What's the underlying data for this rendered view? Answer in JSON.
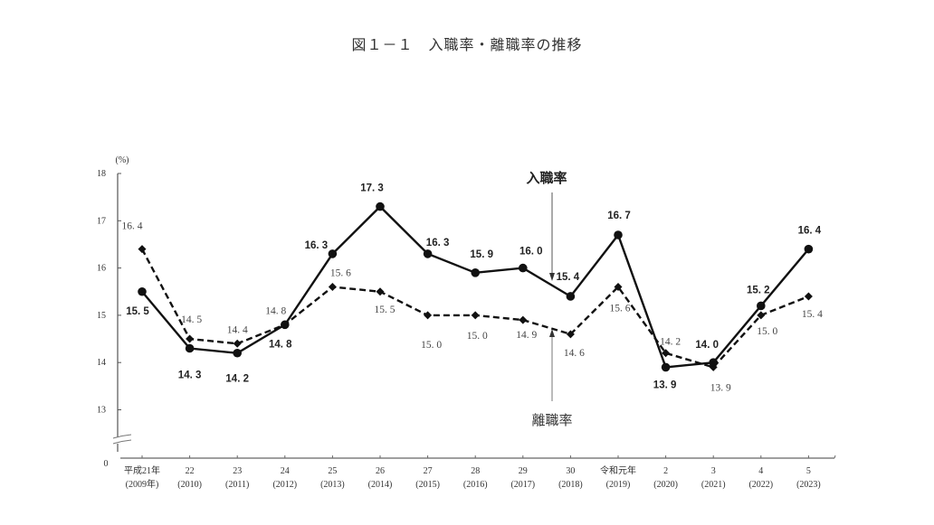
{
  "page": {
    "title": "図１－１　入職率・離職率の推移"
  },
  "chart_data": {
    "type": "line",
    "title": "図１－１　入職率・離職率の推移",
    "xlabel": "",
    "ylabel": "(%)",
    "ylim": [
      13,
      18
    ],
    "yticks": [
      "18",
      "17",
      "16",
      "15",
      "14",
      "13",
      "0"
    ],
    "axis_break": true,
    "grid": false,
    "legend_position": "inline annotations with arrows",
    "categories": [
      {
        "era": "平成21年",
        "year": "(2009年)"
      },
      {
        "era": "22",
        "year": "(2010)"
      },
      {
        "era": "23",
        "year": "(2011)"
      },
      {
        "era": "24",
        "year": "(2012)"
      },
      {
        "era": "25",
        "year": "(2013)"
      },
      {
        "era": "26",
        "year": "(2014)"
      },
      {
        "era": "27",
        "year": "(2015)"
      },
      {
        "era": "28",
        "year": "(2016)"
      },
      {
        "era": "29",
        "year": "(2017)"
      },
      {
        "era": "30",
        "year": "(2018)"
      },
      {
        "era": "令和元年",
        "year": "(2019)"
      },
      {
        "era": "2",
        "year": "(2020)"
      },
      {
        "era": "3",
        "year": "(2021)"
      },
      {
        "era": "4",
        "year": "(2022)"
      },
      {
        "era": "5",
        "year": "(2023)"
      }
    ],
    "series": [
      {
        "name": "入職率",
        "style": "solid",
        "marker": "circle",
        "color": "#111111",
        "values": [
          15.5,
          14.3,
          14.2,
          14.8,
          16.3,
          17.3,
          16.3,
          15.9,
          16.0,
          15.4,
          16.7,
          13.9,
          14.0,
          15.2,
          16.4
        ]
      },
      {
        "name": "離職率",
        "style": "dashed",
        "marker": "diamond",
        "color": "#111111",
        "values": [
          16.4,
          14.5,
          14.4,
          14.8,
          15.6,
          15.5,
          15.0,
          15.0,
          14.9,
          14.6,
          15.6,
          14.2,
          13.9,
          15.0,
          15.4
        ]
      }
    ],
    "annotations": [
      {
        "text": "入職率",
        "arrow": "down",
        "target_category": "30 (2018)"
      },
      {
        "text": "離職率",
        "arrow": "up",
        "target_category": "30 (2018)"
      }
    ]
  }
}
